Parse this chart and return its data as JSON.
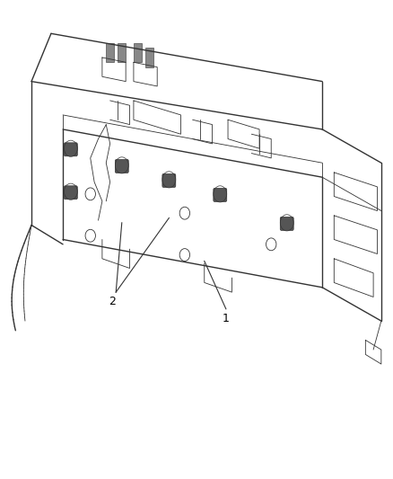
{
  "title": "",
  "background_color": "#ffffff",
  "line_color": "#333333",
  "label_color": "#000000",
  "figsize": [
    4.38,
    5.33
  ],
  "dpi": 100,
  "label1_text": "1",
  "label2_text": "2"
}
